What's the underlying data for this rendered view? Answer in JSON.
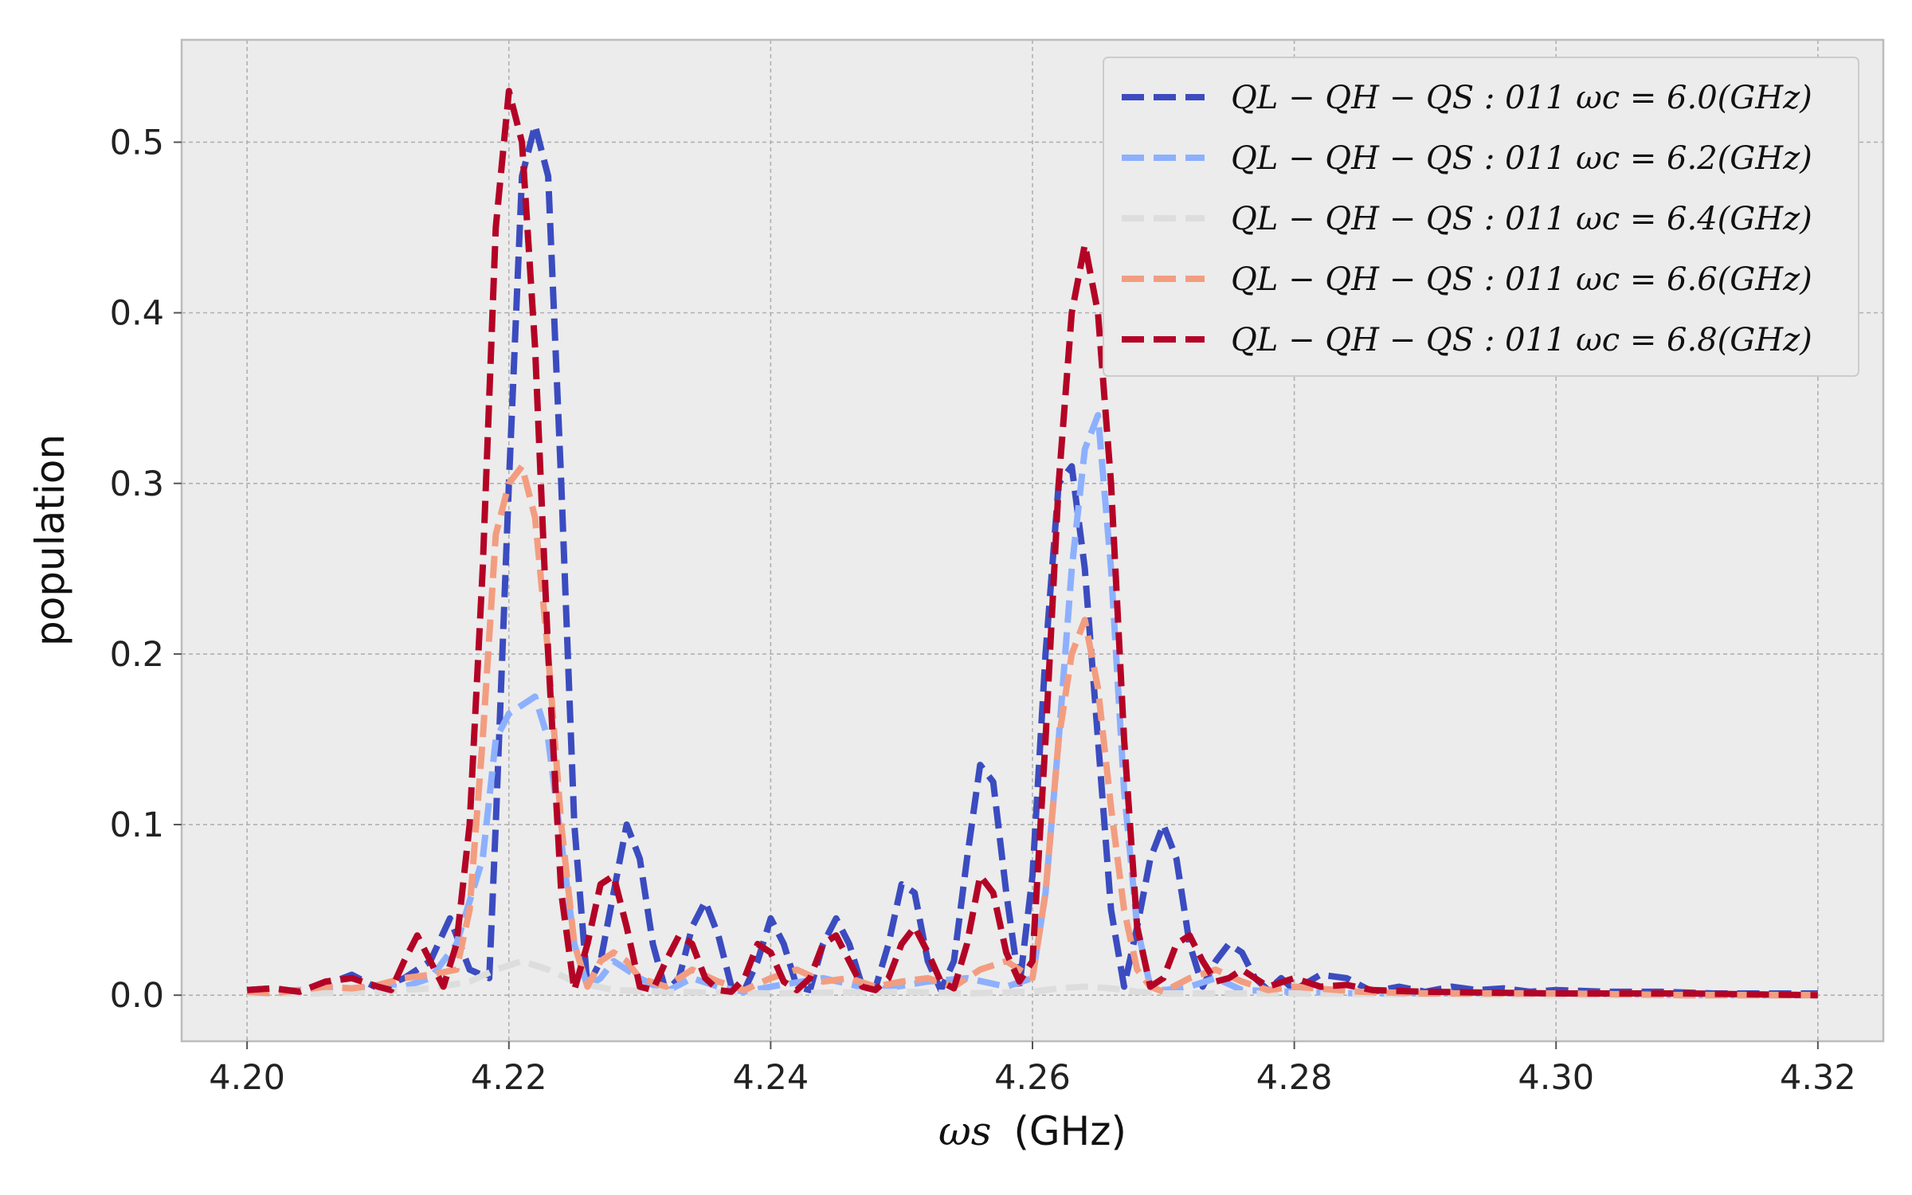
{
  "chart_data": {
    "type": "line",
    "xlabel_symbol": "ωs",
    "xlabel_unit": "(GHz)",
    "ylabel": "population",
    "xlim": [
      4.195,
      4.325
    ],
    "ylim": [
      -0.027,
      0.56
    ],
    "xticks": [
      4.2,
      4.22,
      4.24,
      4.26,
      4.28,
      4.3,
      4.32
    ],
    "xtick_labels": [
      "4.20",
      "4.22",
      "4.24",
      "4.26",
      "4.28",
      "4.30",
      "4.32"
    ],
    "yticks": [
      0.0,
      0.1,
      0.2,
      0.3,
      0.4,
      0.5
    ],
    "ytick_labels": [
      "0.0",
      "0.1",
      "0.2",
      "0.3",
      "0.4",
      "0.5"
    ],
    "grid": true,
    "legend_position": "top-right",
    "line_style": "dashed",
    "background": "#ececec",
    "series": [
      {
        "name": "QL − QH − QS : 011 ωc = 6.0(GHz)",
        "color": "#3b4cc0",
        "x": [
          4.2,
          4.202,
          4.204,
          4.206,
          4.208,
          4.21,
          4.212,
          4.214,
          4.2155,
          4.217,
          4.2185,
          4.219,
          4.22,
          4.221,
          4.222,
          4.223,
          4.224,
          4.225,
          4.226,
          4.227,
          4.228,
          4.229,
          4.23,
          4.231,
          4.232,
          4.233,
          4.234,
          4.235,
          4.236,
          4.237,
          4.238,
          4.239,
          4.24,
          4.241,
          4.242,
          4.243,
          4.244,
          4.245,
          4.246,
          4.247,
          4.248,
          4.249,
          4.25,
          4.251,
          4.252,
          4.253,
          4.254,
          4.255,
          4.256,
          4.257,
          4.258,
          4.259,
          4.26,
          4.261,
          4.262,
          4.263,
          4.264,
          4.265,
          4.266,
          4.267,
          4.268,
          4.269,
          4.27,
          4.271,
          4.272,
          4.273,
          4.274,
          4.275,
          4.276,
          4.277,
          4.278,
          4.279,
          4.28,
          4.282,
          4.284,
          4.286,
          4.288,
          4.29,
          4.292,
          4.294,
          4.296,
          4.298,
          4.3,
          4.304,
          4.308,
          4.312,
          4.316,
          4.32
        ],
        "y": [
          0.003,
          0.004,
          0.002,
          0.006,
          0.012,
          0.004,
          0.01,
          0.02,
          0.045,
          0.015,
          0.01,
          0.1,
          0.3,
          0.48,
          0.51,
          0.48,
          0.3,
          0.1,
          0.005,
          0.02,
          0.06,
          0.1,
          0.08,
          0.03,
          0.002,
          0.01,
          0.04,
          0.055,
          0.035,
          0.005,
          0.003,
          0.02,
          0.045,
          0.03,
          0.005,
          0.003,
          0.03,
          0.045,
          0.03,
          0.005,
          0.004,
          0.03,
          0.065,
          0.06,
          0.02,
          0.003,
          0.02,
          0.08,
          0.135,
          0.125,
          0.06,
          0.005,
          0.07,
          0.2,
          0.3,
          0.31,
          0.25,
          0.15,
          0.05,
          0.005,
          0.04,
          0.08,
          0.1,
          0.08,
          0.03,
          0.005,
          0.02,
          0.03,
          0.025,
          0.01,
          0.003,
          0.01,
          0.003,
          0.012,
          0.01,
          0.002,
          0.005,
          0.002,
          0.005,
          0.003,
          0.004,
          0.002,
          0.003,
          0.002,
          0.002,
          0.001,
          0.001,
          0.001
        ]
      },
      {
        "name": "QL − QH − QS : 011 ωc = 6.2(GHz)",
        "color": "#8db0fe",
        "x": [
          4.2,
          4.204,
          4.208,
          4.212,
          4.214,
          4.216,
          4.218,
          4.219,
          4.22,
          4.221,
          4.222,
          4.223,
          4.224,
          4.225,
          4.226,
          4.227,
          4.228,
          4.23,
          4.232,
          4.234,
          4.236,
          4.238,
          4.24,
          4.244,
          4.248,
          4.252,
          4.255,
          4.258,
          4.26,
          4.261,
          4.262,
          4.263,
          4.264,
          4.265,
          4.266,
          4.267,
          4.268,
          4.269,
          4.27,
          4.272,
          4.274,
          4.276,
          4.28,
          4.285,
          4.29,
          4.3,
          4.31,
          4.32
        ],
        "y": [
          0.002,
          0.003,
          0.004,
          0.005,
          0.01,
          0.03,
          0.08,
          0.15,
          0.165,
          0.17,
          0.175,
          0.15,
          0.09,
          0.03,
          0.005,
          0.01,
          0.02,
          0.01,
          0.002,
          0.01,
          0.005,
          0.002,
          0.005,
          0.01,
          0.003,
          0.008,
          0.01,
          0.005,
          0.01,
          0.06,
          0.15,
          0.25,
          0.32,
          0.34,
          0.25,
          0.12,
          0.04,
          0.005,
          0.003,
          0.005,
          0.01,
          0.003,
          0.002,
          0.001,
          0.001,
          0.001,
          0.0,
          0.0
        ]
      },
      {
        "name": "QL − QH − QS : 011 ωc = 6.4(GHz)",
        "color": "#dddddd",
        "x": [
          4.2,
          4.205,
          4.21,
          4.214,
          4.217,
          4.219,
          4.221,
          4.223,
          4.225,
          4.228,
          4.232,
          4.24,
          4.25,
          4.255,
          4.26,
          4.262,
          4.264,
          4.266,
          4.268,
          4.27,
          4.28,
          4.3,
          4.32
        ],
        "y": [
          0.001,
          0.001,
          0.002,
          0.004,
          0.008,
          0.015,
          0.02,
          0.015,
          0.008,
          0.003,
          0.002,
          0.001,
          0.002,
          0.001,
          0.002,
          0.004,
          0.005,
          0.004,
          0.002,
          0.001,
          0.001,
          0.0,
          0.0
        ]
      },
      {
        "name": "QL − QH − QS : 011 ωc = 6.6(GHz)",
        "color": "#f39d80",
        "x": [
          4.2,
          4.202,
          4.204,
          4.206,
          4.208,
          4.21,
          4.212,
          4.214,
          4.216,
          4.217,
          4.218,
          4.219,
          4.22,
          4.221,
          4.222,
          4.223,
          4.224,
          4.225,
          4.226,
          4.227,
          4.228,
          4.229,
          4.23,
          4.232,
          4.234,
          4.236,
          4.238,
          4.24,
          4.242,
          4.244,
          4.246,
          4.248,
          4.25,
          4.252,
          4.254,
          4.256,
          4.258,
          4.259,
          4.26,
          4.261,
          4.262,
          4.263,
          4.264,
          4.265,
          4.266,
          4.267,
          4.268,
          4.269,
          4.27,
          4.272,
          4.274,
          4.276,
          4.278,
          4.28,
          4.285,
          4.29,
          4.3,
          4.31,
          4.32
        ],
        "y": [
          0.002,
          0.001,
          0.003,
          0.005,
          0.004,
          0.006,
          0.01,
          0.012,
          0.015,
          0.05,
          0.15,
          0.27,
          0.3,
          0.31,
          0.28,
          0.2,
          0.1,
          0.03,
          0.005,
          0.02,
          0.025,
          0.02,
          0.01,
          0.005,
          0.015,
          0.008,
          0.003,
          0.01,
          0.015,
          0.008,
          0.01,
          0.005,
          0.008,
          0.01,
          0.005,
          0.015,
          0.02,
          0.015,
          0.01,
          0.06,
          0.15,
          0.2,
          0.22,
          0.18,
          0.11,
          0.05,
          0.015,
          0.005,
          0.002,
          0.01,
          0.015,
          0.008,
          0.003,
          0.005,
          0.002,
          0.001,
          0.001,
          0.0,
          0.0
        ]
      },
      {
        "name": "QL − QH − QS : 011 ωc = 6.8(GHz)",
        "color": "#b40426",
        "x": [
          4.2,
          4.202,
          4.204,
          4.206,
          4.208,
          4.21,
          4.211,
          4.212,
          4.213,
          4.214,
          4.215,
          4.216,
          4.217,
          4.218,
          4.219,
          4.22,
          4.221,
          4.222,
          4.223,
          4.224,
          4.225,
          4.226,
          4.227,
          4.228,
          4.229,
          4.23,
          4.231,
          4.232,
          4.233,
          4.234,
          4.235,
          4.236,
          4.237,
          4.238,
          4.239,
          4.24,
          4.241,
          4.242,
          4.243,
          4.244,
          4.245,
          4.246,
          4.247,
          4.248,
          4.249,
          4.25,
          4.251,
          4.252,
          4.253,
          4.254,
          4.255,
          4.256,
          4.257,
          4.258,
          4.259,
          4.26,
          4.261,
          4.262,
          4.263,
          4.264,
          4.265,
          4.266,
          4.267,
          4.268,
          4.269,
          4.27,
          4.271,
          4.272,
          4.273,
          4.274,
          4.275,
          4.276,
          4.277,
          4.278,
          4.28,
          4.282,
          4.284,
          4.286,
          4.29,
          4.3,
          4.31,
          4.32
        ],
        "y": [
          0.003,
          0.004,
          0.002,
          0.008,
          0.01,
          0.005,
          0.003,
          0.02,
          0.035,
          0.02,
          0.005,
          0.03,
          0.1,
          0.25,
          0.45,
          0.53,
          0.5,
          0.38,
          0.2,
          0.06,
          0.003,
          0.03,
          0.065,
          0.07,
          0.04,
          0.005,
          0.003,
          0.02,
          0.035,
          0.03,
          0.01,
          0.003,
          0.002,
          0.01,
          0.03,
          0.025,
          0.008,
          0.003,
          0.01,
          0.03,
          0.035,
          0.02,
          0.005,
          0.003,
          0.01,
          0.03,
          0.04,
          0.025,
          0.008,
          0.004,
          0.03,
          0.07,
          0.06,
          0.025,
          0.008,
          0.02,
          0.15,
          0.3,
          0.4,
          0.44,
          0.4,
          0.3,
          0.15,
          0.04,
          0.005,
          0.01,
          0.03,
          0.035,
          0.02,
          0.008,
          0.01,
          0.015,
          0.01,
          0.005,
          0.01,
          0.005,
          0.006,
          0.003,
          0.002,
          0.001,
          0.001,
          0.0
        ]
      }
    ]
  }
}
